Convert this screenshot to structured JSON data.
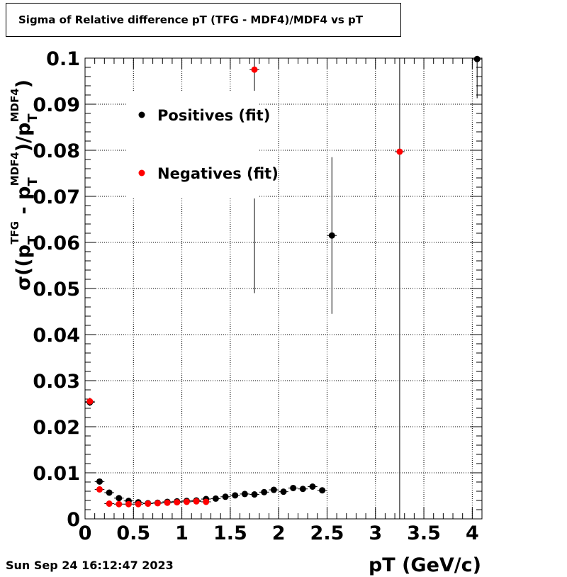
{
  "title": "Sigma of Relative difference pT (TFG - MDF4)/MDF4 vs pT",
  "timestamp": "Sun Sep 24 16:12:47 2023",
  "colors": {
    "positives": "#000000",
    "negatives": "#ff0000",
    "grid": "#000000"
  },
  "chart_data": {
    "type": "scatter",
    "title": "Sigma of Relative difference pT (TFG - MDF4)/MDF4 vs pT",
    "xlabel": "pT (GeV/c)",
    "ylabel": {
      "prefix": "σ((p",
      "sub1": "T",
      "sup1": "TFG",
      "mid": " - p",
      "sub2": "T",
      "sup2": "MDF4",
      "mid2": ")/p",
      "sub3": "T",
      "sup3": "MDF4",
      "suffix": ")"
    },
    "xlim": [
      0,
      4.1
    ],
    "ylim": [
      0,
      0.1
    ],
    "xticks": [
      0,
      0.5,
      1,
      1.5,
      2,
      2.5,
      3,
      3.5,
      4
    ],
    "xtick_labels": [
      "0",
      "0.5",
      "1",
      "1.5",
      "2",
      "2.5",
      "3",
      "3.5",
      "4"
    ],
    "yticks": [
      0,
      0.01,
      0.02,
      0.03,
      0.04,
      0.05,
      0.06,
      0.07,
      0.08,
      0.09,
      0.1
    ],
    "ytick_labels": [
      "0",
      "0.01",
      "0.02",
      "0.03",
      "0.04",
      "0.05",
      "0.06",
      "0.07",
      "0.08",
      "0.09",
      "0.1"
    ],
    "grid": true,
    "legend": {
      "placement": "top-left"
    },
    "series": [
      {
        "name": "Positives (fit)",
        "color": "#000000",
        "x": [
          0.05,
          0.15,
          0.25,
          0.35,
          0.45,
          0.55,
          0.65,
          0.75,
          0.85,
          0.95,
          1.05,
          1.15,
          1.25,
          1.35,
          1.45,
          1.55,
          1.65,
          1.75,
          1.85,
          1.95,
          2.05,
          2.15,
          2.25,
          2.35,
          2.45,
          2.55,
          4.05
        ],
        "y": [
          0.0253,
          0.0081,
          0.0057,
          0.0045,
          0.0039,
          0.0036,
          0.0034,
          0.0035,
          0.0037,
          0.0038,
          0.0039,
          0.004,
          0.0043,
          0.0044,
          0.0048,
          0.0051,
          0.0054,
          0.0053,
          0.0058,
          0.0063,
          0.0059,
          0.0067,
          0.0065,
          0.007,
          0.0062,
          0.0615,
          0.0998
        ],
        "yerr": [
          0.0008,
          0.0004,
          0.0003,
          0.0002,
          0.0002,
          0.0002,
          0.0002,
          0.0002,
          0.0002,
          0.0002,
          0.0002,
          0.0002,
          0.0002,
          0.0002,
          0.0002,
          0.0002,
          0.0003,
          0.0003,
          0.0003,
          0.0003,
          0.0003,
          0.0004,
          0.0004,
          0.0004,
          0.0004,
          0.017,
          0.0085
        ]
      },
      {
        "name": "Negatives (fit)",
        "color": "#ff0000",
        "x": [
          0.05,
          0.15,
          0.25,
          0.35,
          0.45,
          0.55,
          0.65,
          0.75,
          0.85,
          0.95,
          1.05,
          1.15,
          1.25,
          1.75,
          3.25
        ],
        "y": [
          0.0255,
          0.0064,
          0.0033,
          0.0032,
          0.0032,
          0.0032,
          0.0033,
          0.0034,
          0.0035,
          0.0036,
          0.0037,
          0.0038,
          0.0037,
          0.0975,
          0.0797
        ],
        "yerr": [
          0.0008,
          0.0003,
          0.0002,
          0.0002,
          0.0002,
          0.0002,
          0.0002,
          0.0002,
          0.0002,
          0.0002,
          0.0002,
          0.0002,
          0.0002,
          0.0485,
          0.08
        ]
      }
    ]
  }
}
